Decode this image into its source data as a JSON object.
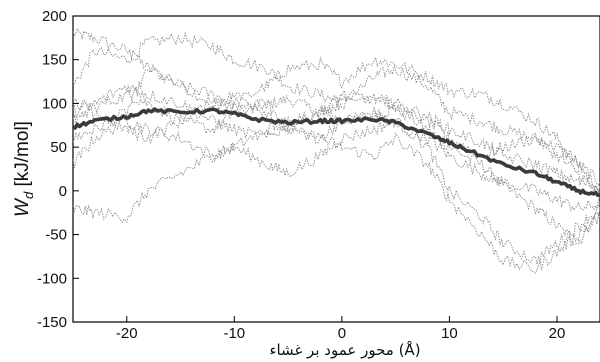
{
  "chart_data": {
    "type": "line",
    "xlabel": "محور عمود بر غشاء (Å)",
    "ylabel": {
      "symbol": "W",
      "subscript": "d",
      "unit": " [kJ/mol]"
    },
    "xlim": [
      -25,
      24
    ],
    "ylim": [
      -150,
      200
    ],
    "xticks": [
      -20,
      -10,
      0,
      10,
      20
    ],
    "yticks": [
      -150,
      -100,
      -50,
      0,
      50,
      100,
      150,
      200
    ],
    "grid": false,
    "legend": "none",
    "colors": {
      "mean": "#3a3a3a",
      "trajectories": "#8a8a8a",
      "axis": "#000000"
    },
    "mean_series": {
      "style": "thick-solid",
      "x": [
        -25,
        -23,
        -20,
        -18,
        -15,
        -12,
        -10,
        -8,
        -5,
        -2,
        0,
        3,
        5,
        8,
        10,
        12,
        15,
        18,
        20,
        22,
        24
      ],
      "values": [
        73,
        80,
        85,
        92,
        90,
        92,
        88,
        82,
        78,
        80,
        80,
        82,
        78,
        65,
        55,
        45,
        30,
        20,
        10,
        0,
        -5
      ]
    },
    "trajectories": [
      {
        "x": [
          -25,
          -23,
          -20,
          -18,
          -15,
          -12,
          -10,
          -7,
          -5,
          -2,
          0,
          3,
          5,
          8,
          10,
          13,
          15,
          18,
          20,
          22,
          24
        ],
        "values": [
          180,
          175,
          160,
          140,
          120,
          100,
          95,
          98,
          105,
          90,
          80,
          85,
          95,
          70,
          50,
          30,
          5,
          -20,
          -40,
          -60,
          -20
        ]
      },
      {
        "x": [
          -25,
          -23,
          -20,
          -18,
          -15,
          -12,
          -10,
          -7,
          -5,
          -2,
          0,
          3,
          5,
          8,
          10,
          13,
          15,
          18,
          20,
          22,
          24
        ],
        "values": [
          120,
          160,
          150,
          170,
          175,
          165,
          150,
          140,
          120,
          110,
          100,
          130,
          140,
          120,
          90,
          80,
          70,
          60,
          50,
          30,
          10
        ]
      },
      {
        "x": [
          -25,
          -23,
          -20,
          -18,
          -15,
          -12,
          -10,
          -7,
          -5,
          -2,
          0,
          3,
          5,
          8,
          10,
          13,
          15,
          18,
          20,
          22,
          24
        ],
        "values": [
          60,
          70,
          90,
          140,
          120,
          110,
          100,
          120,
          140,
          145,
          125,
          150,
          145,
          130,
          115,
          110,
          100,
          80,
          60,
          30,
          0
        ]
      },
      {
        "x": [
          -25,
          -23,
          -20,
          -18,
          -15,
          -12,
          -10,
          -7,
          -5,
          -2,
          0,
          3,
          5,
          8,
          10,
          13,
          15,
          18,
          20,
          22,
          24
        ],
        "values": [
          100,
          95,
          110,
          100,
          80,
          70,
          90,
          100,
          70,
          60,
          80,
          90,
          75,
          60,
          40,
          20,
          10,
          0,
          -10,
          -20,
          -15
        ]
      },
      {
        "x": [
          -25,
          -23,
          -20,
          -18,
          -15,
          -12,
          -10,
          -7,
          -5,
          -2,
          0,
          3,
          5,
          8,
          10,
          13,
          15,
          18,
          20,
          22,
          24
        ],
        "values": [
          30,
          60,
          80,
          70,
          60,
          40,
          50,
          70,
          80,
          90,
          100,
          110,
          95,
          80,
          60,
          40,
          50,
          60,
          40,
          20,
          -5
        ]
      },
      {
        "x": [
          -25,
          -23,
          -20,
          -18,
          -15,
          -12,
          -10,
          -7,
          -5,
          -2,
          0,
          3,
          5,
          8,
          10,
          13,
          15,
          18,
          20,
          22,
          24
        ],
        "values": [
          -20,
          -25,
          -30,
          0,
          20,
          40,
          50,
          30,
          20,
          40,
          60,
          70,
          80,
          50,
          0,
          -30,
          -60,
          -80,
          -60,
          -40,
          -20
        ]
      },
      {
        "x": [
          -25,
          -23,
          -20,
          -18,
          -15,
          -12,
          -10,
          -7,
          -5,
          -2,
          0,
          3,
          5,
          8,
          10,
          13,
          15,
          18,
          20,
          22,
          24
        ],
        "values": [
          80,
          90,
          70,
          60,
          80,
          100,
          110,
          90,
          70,
          60,
          50,
          40,
          60,
          30,
          -10,
          -50,
          -80,
          -90,
          -70,
          -50,
          -30
        ]
      },
      {
        "x": [
          -25,
          -23,
          -20,
          -18,
          -15,
          -12,
          -10,
          -7,
          -5,
          -2,
          0,
          3,
          5,
          8,
          10,
          13,
          15,
          18,
          20,
          22,
          24
        ],
        "values": [
          90,
          100,
          120,
          110,
          100,
          80,
          70,
          60,
          75,
          90,
          110,
          105,
          100,
          85,
          70,
          55,
          40,
          30,
          20,
          10,
          5
        ]
      }
    ]
  }
}
